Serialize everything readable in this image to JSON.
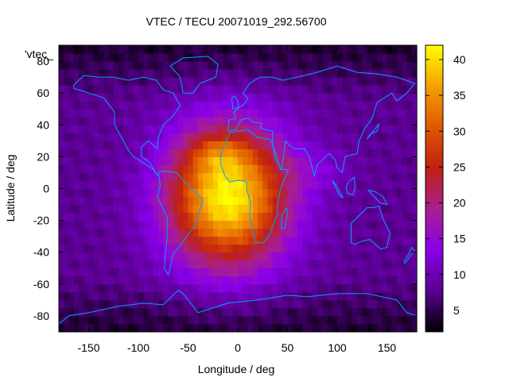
{
  "chart_data": {
    "type": "heatmap",
    "title": "VTEC / TECU 20071019_292.56700",
    "xlabel": "Longitude / deg",
    "ylabel": "Latitude / deg",
    "key_label": "'vtec_",
    "xlim": [
      -180,
      180
    ],
    "ylim": [
      -90,
      90
    ],
    "x_ticks": [
      -150,
      -100,
      -50,
      0,
      50,
      100,
      150
    ],
    "y_ticks": [
      -80,
      -60,
      -40,
      -20,
      0,
      20,
      40,
      60,
      80
    ],
    "x_tick_labels": [
      "-150",
      "-100",
      "-50",
      "0",
      "50",
      "100",
      "150"
    ],
    "y_tick_labels": [
      "-80",
      "-60",
      "-40",
      "-20",
      "0",
      "20",
      "40",
      "60",
      "80"
    ],
    "color_range": [
      2,
      42
    ],
    "colorbar_ticks": [
      5,
      10,
      15,
      20,
      25,
      30,
      35,
      40
    ],
    "colorbar_tick_labels": [
      "5",
      "10",
      "15",
      "20",
      "25",
      "30",
      "35",
      "40"
    ],
    "colormap": [
      "#000000",
      "#5a0090",
      "#8a00e8",
      "#a8208e",
      "#c02010",
      "#e05800",
      "#f4a000",
      "#ffff00"
    ],
    "peak_location_deg": [
      -10,
      -5
    ],
    "peak_value": 42,
    "background_value": 8,
    "grid_step_deg": 5,
    "coast_color": "#00a0ff"
  }
}
